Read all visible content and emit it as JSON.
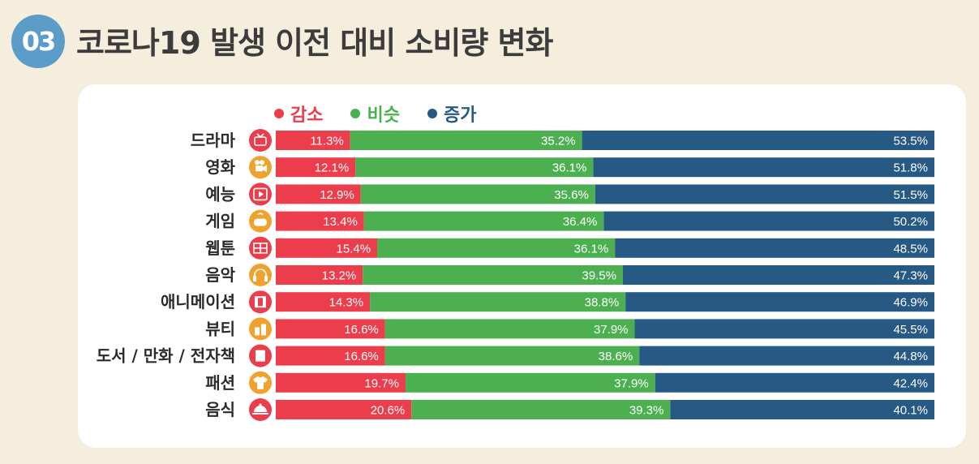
{
  "header": {
    "badge": "03",
    "title": "코로나19 발생 이전 대비 소비량 변화"
  },
  "chart_data": {
    "type": "bar",
    "stacked": true,
    "orientation": "horizontal",
    "categories": [
      "드라마",
      "영화",
      "예능",
      "게임",
      "웹툰",
      "음악",
      "애니메이션",
      "뷰티",
      "도서 / 만화 / 전자책",
      "패션",
      "음식"
    ],
    "category_icons": [
      "tv-icon",
      "movie-camera-icon",
      "video-play-icon",
      "gamepad-icon",
      "webtoon-book-icon",
      "headphones-icon",
      "film-strip-icon",
      "cosmetics-icon",
      "book-icon",
      "tshirt-icon",
      "food-cloche-icon"
    ],
    "series": [
      {
        "name": "감소",
        "color": "#ec3d4c",
        "values": [
          11.3,
          12.1,
          12.9,
          13.4,
          15.4,
          13.2,
          14.3,
          16.6,
          16.6,
          19.7,
          20.6
        ]
      },
      {
        "name": "비슷",
        "color": "#4cb050",
        "values": [
          35.2,
          36.1,
          35.6,
          36.4,
          36.1,
          39.5,
          38.8,
          37.9,
          38.6,
          37.9,
          39.3
        ]
      },
      {
        "name": "증가",
        "color": "#275985",
        "values": [
          53.5,
          51.8,
          51.5,
          50.2,
          48.5,
          47.3,
          46.9,
          45.5,
          44.8,
          42.4,
          40.1
        ]
      }
    ],
    "value_suffix": "%",
    "xlim": [
      0,
      100
    ],
    "legend_position": "top-left",
    "grid": false
  }
}
